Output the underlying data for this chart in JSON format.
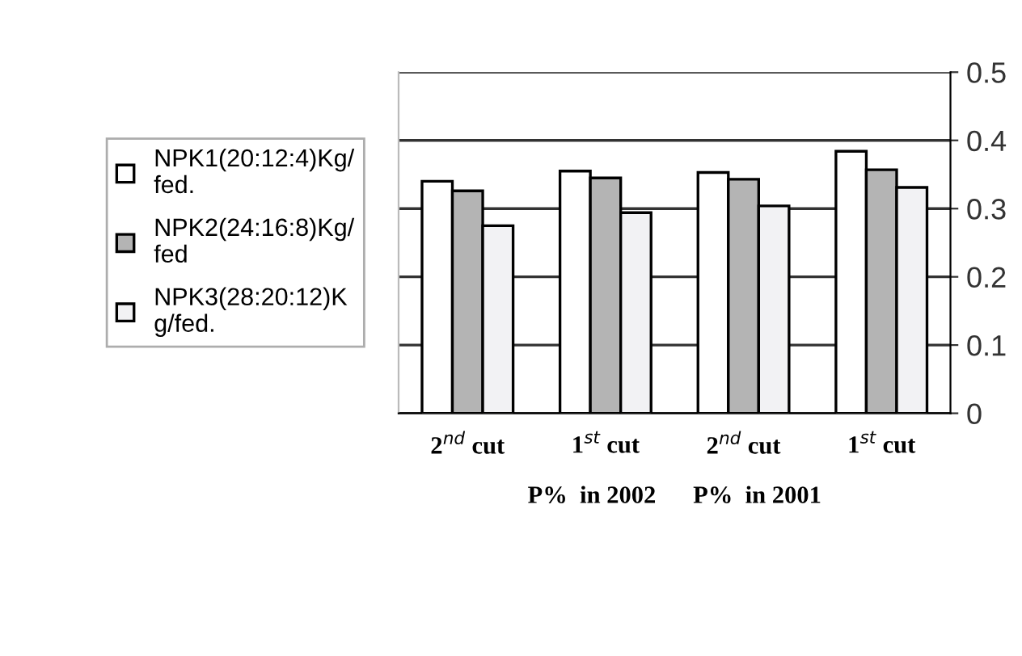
{
  "chart_data": {
    "type": "bar",
    "categories": [
      "2$^{nd}$ cut",
      "1$^{st}$ cut",
      "2$^{nd}$ cut",
      "1$^{st}$ cut"
    ],
    "xlabel": "P%  in 2002      P%  in 2001",
    "series": [
      {
        "name": "NPK1(20:12:4)Kg/\nfed.",
        "color": "#ffffff",
        "values": [
          0.34,
          0.355,
          0.353,
          0.384
        ]
      },
      {
        "name": "NPK2(24:16:8)Kg/\nfed",
        "color": "#b4b4b4",
        "values": [
          0.326,
          0.345,
          0.343,
          0.357
        ]
      },
      {
        "name": "NPK3(28:20:12)K\ng/fed.",
        "color": "#f2f2f4",
        "values": [
          0.275,
          0.294,
          0.304,
          0.331
        ]
      }
    ],
    "ylim": [
      0,
      0.5
    ],
    "yticks": [
      0,
      0.1,
      0.2,
      0.3,
      0.4,
      0.5
    ],
    "grid": "y",
    "legend": "left"
  }
}
